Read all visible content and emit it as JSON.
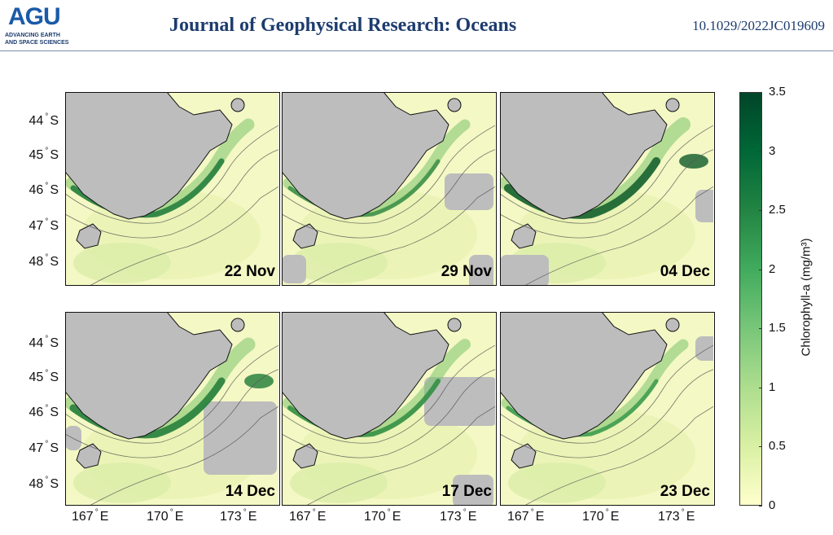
{
  "header": {
    "logo_mark": "AGU",
    "logo_line1": "ADVANCING EARTH",
    "logo_line2": "AND SPACE SCIENCES",
    "journal": "Journal of Geophysical Research: Oceans",
    "doi": "10.1029/2022JC019609"
  },
  "figure": {
    "panels": [
      {
        "label": "22 Nov"
      },
      {
        "label": "29 Nov"
      },
      {
        "label": "04 Dec"
      },
      {
        "label": "14 Dec"
      },
      {
        "label": "17 Dec"
      },
      {
        "label": "23 Dec"
      }
    ],
    "lat_ticks": [
      "44",
      "45",
      "46",
      "47",
      "48"
    ],
    "lat_suffix": "S",
    "lon_ticks": [
      "167",
      "170",
      "173"
    ],
    "lon_suffix": "E",
    "degree_symbol": "°",
    "colorbar": {
      "label": "Chlorophyll-a (mg/m³)",
      "ticks": [
        "0",
        "0.5",
        "1",
        "1.5",
        "2",
        "2.5",
        "3",
        "3.5"
      ],
      "min": 0,
      "max": 3.5,
      "colors": [
        "#ffffcc",
        "#d9f0a3",
        "#addd8e",
        "#78c679",
        "#41ab5d",
        "#238443",
        "#006837",
        "#004529"
      ]
    },
    "land_color": "#bdbdbd"
  }
}
